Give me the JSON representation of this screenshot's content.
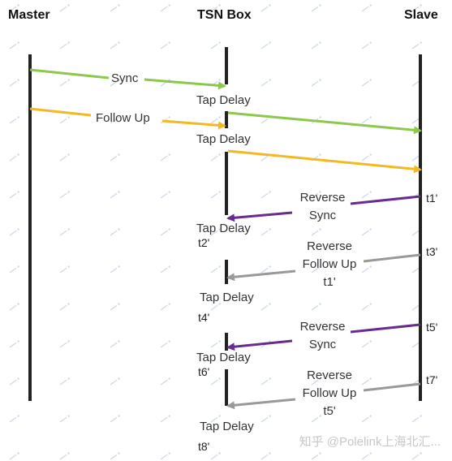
{
  "headers": {
    "master": "Master",
    "tsn_box": "TSN Box",
    "slave": "Slave"
  },
  "messages": {
    "sync": "Sync",
    "follow_up": "Follow Up",
    "reverse_sync": "Reverse\nSync",
    "reverse_follow_up_1": "Reverse\nFollow Up\nt1'",
    "reverse_sync_2": "Reverse\nSync",
    "reverse_follow_up_2": "Reverse\nFollow Up\nt5'"
  },
  "tap_delay": "Tap Delay",
  "timestamps": {
    "t1": "t1'",
    "t2": "t2'",
    "t3": "t3'",
    "t4": "t4'",
    "t5": "t5'",
    "t6": "t6'",
    "t7": "t7'",
    "t8": "t8'"
  },
  "watermark": "知乎 @Polelink上海北汇...",
  "colors": {
    "sync": "#8cc84b",
    "follow_up": "#f4b823",
    "reverse_sync": "#6a2b91",
    "reverse_follow_up": "#999999",
    "line": "#222222"
  }
}
